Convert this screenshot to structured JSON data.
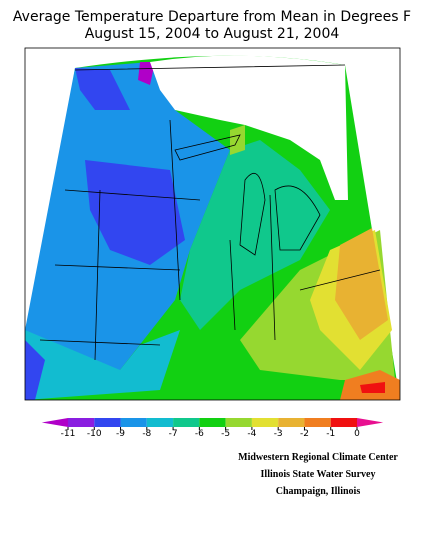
{
  "title": [
    "Average Temperature Departure from Mean in Degrees F",
    "August 15, 2004 to August 21, 2004"
  ],
  "legend": {
    "bins": [
      -11,
      -10,
      -9,
      -8,
      -7,
      -6,
      -5,
      -4,
      -3,
      -2,
      -1,
      0
    ],
    "colors": [
      "#b000c8",
      "#8a1ee0",
      "#3246f0",
      "#1a94e8",
      "#12bcd0",
      "#10c88c",
      "#12d012",
      "#96d830",
      "#e2e032",
      "#e8b232",
      "#f07e20",
      "#f01010",
      "#e81090"
    ]
  },
  "credits": [
    "Midwestern Regional Climate Center",
    "Illinois State Water Survey",
    "Champaign, Illinois"
  ]
}
